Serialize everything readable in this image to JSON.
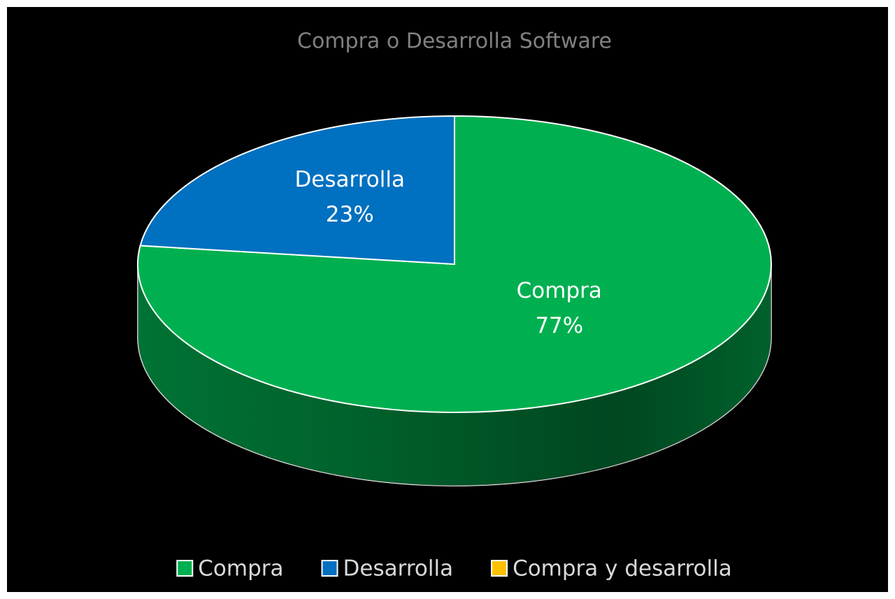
{
  "chart_data": {
    "type": "pie",
    "title": "Compra o Desarrolla Software",
    "categories": [
      "Compra",
      "Desarrolla",
      "Compra y desarrolla"
    ],
    "values": [
      77,
      23,
      0
    ],
    "value_labels": [
      "77%",
      "23%",
      null
    ],
    "colors": [
      "#00b050",
      "#0070c0",
      "#ffc000"
    ],
    "legend": "bottom"
  }
}
